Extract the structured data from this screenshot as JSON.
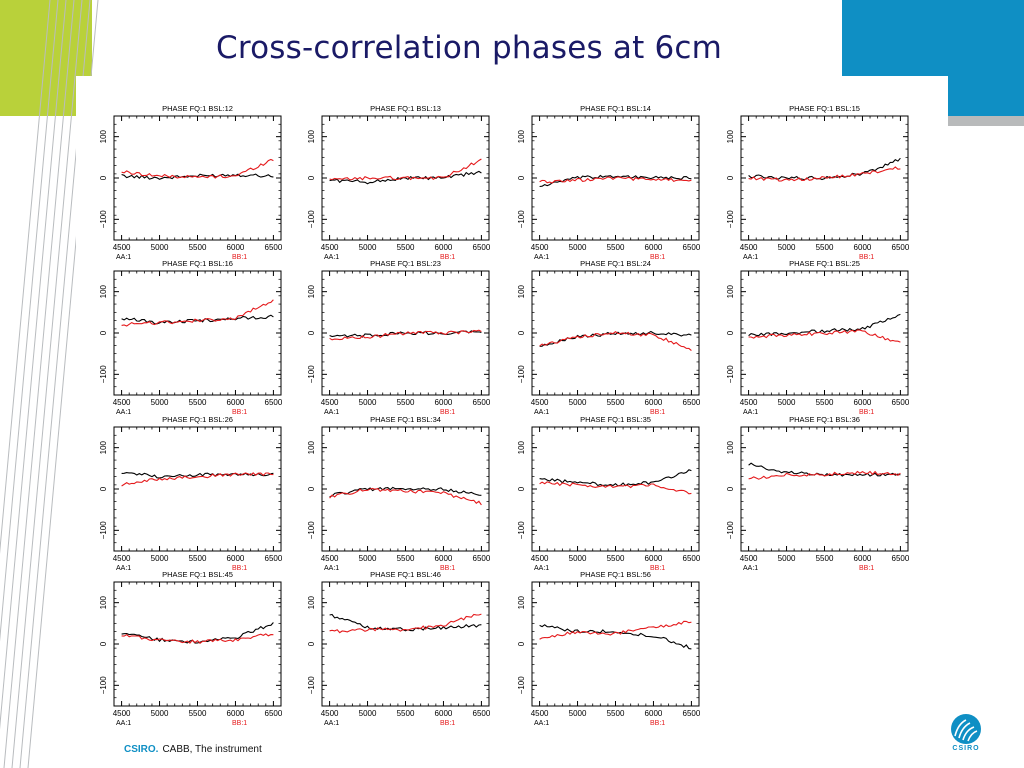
{
  "slide": {
    "title": "Cross-correlation phases at 6cm",
    "footer_brand": "CSIRO.",
    "footer_text": "CABB, The instrument",
    "logo_text": "CSIRO"
  },
  "colors": {
    "band": "#0f8fc4",
    "lime": "#b9d13a",
    "series_aa": "#000000",
    "series_bb": "#e41a1c"
  },
  "chart_data": [
    {
      "type": "line",
      "title": "PHASE FQ:1 BSL:12",
      "x": [
        4500,
        5000,
        5500,
        6000,
        6500
      ],
      "ylim": [
        -150,
        150
      ],
      "xlim": [
        4400,
        6600
      ],
      "xticks": [
        "4500",
        "5000",
        "5500",
        "6000",
        "6500"
      ],
      "yticks": [
        "100",
        "0",
        "−100"
      ],
      "legend": [
        "AA:1",
        "BB:1"
      ],
      "series": [
        {
          "name": "AA:1",
          "values": [
            5,
            0,
            5,
            8,
            5
          ]
        },
        {
          "name": "BB:1",
          "values": [
            15,
            5,
            2,
            5,
            45
          ]
        }
      ]
    },
    {
      "type": "line",
      "title": "PHASE FQ:1 BSL:13",
      "x": [
        4500,
        5000,
        5500,
        6000,
        6500
      ],
      "ylim": [
        -150,
        150
      ],
      "xlim": [
        4400,
        6600
      ],
      "xticks": [
        "4500",
        "5000",
        "5500",
        "6000",
        "6500"
      ],
      "yticks": [
        "100",
        "0",
        "−100"
      ],
      "legend": [
        "AA:1",
        "BB:1"
      ],
      "series": [
        {
          "name": "AA:1",
          "values": [
            -5,
            -10,
            0,
            0,
            15
          ]
        },
        {
          "name": "BB:1",
          "values": [
            -5,
            0,
            0,
            0,
            45
          ]
        }
      ]
    },
    {
      "type": "line",
      "title": "PHASE FQ:1 BSL:14",
      "x": [
        4500,
        5000,
        5500,
        6000,
        6500
      ],
      "ylim": [
        -150,
        150
      ],
      "xlim": [
        4400,
        6600
      ],
      "xticks": [
        "4500",
        "5000",
        "5500",
        "6000",
        "6500"
      ],
      "yticks": [
        "100",
        "0",
        "−100"
      ],
      "legend": [
        "AA:1",
        "BB:1"
      ],
      "series": [
        {
          "name": "AA:1",
          "values": [
            -20,
            0,
            5,
            0,
            0
          ]
        },
        {
          "name": "BB:1",
          "values": [
            -10,
            -5,
            0,
            -5,
            -5
          ]
        }
      ]
    },
    {
      "type": "line",
      "title": "PHASE FQ:1 BSL:15",
      "x": [
        4500,
        5000,
        5500,
        6000,
        6500
      ],
      "ylim": [
        -150,
        150
      ],
      "xlim": [
        4400,
        6600
      ],
      "xticks": [
        "4500",
        "5000",
        "5500",
        "6000",
        "6500"
      ],
      "yticks": [
        "100",
        "0",
        "−100"
      ],
      "legend": [
        "AA:1",
        "BB:1"
      ],
      "series": [
        {
          "name": "AA:1",
          "values": [
            5,
            0,
            0,
            10,
            45
          ]
        },
        {
          "name": "BB:1",
          "values": [
            0,
            -5,
            0,
            10,
            25
          ]
        }
      ]
    },
    {
      "type": "line",
      "title": "PHASE FQ:1 BSL:16",
      "x": [
        4500,
        5000,
        5500,
        6000,
        6500
      ],
      "ylim": [
        -150,
        150
      ],
      "xlim": [
        4400,
        6600
      ],
      "xticks": [
        "4500",
        "5000",
        "5500",
        "6000",
        "6500"
      ],
      "yticks": [
        "100",
        "0",
        "−100"
      ],
      "legend": [
        "AA:1",
        "BB:1"
      ],
      "series": [
        {
          "name": "AA:1",
          "values": [
            35,
            25,
            30,
            35,
            40
          ]
        },
        {
          "name": "BB:1",
          "values": [
            20,
            25,
            30,
            35,
            80
          ]
        }
      ]
    },
    {
      "type": "line",
      "title": "PHASE FQ:1 BSL:23",
      "x": [
        4500,
        5000,
        5500,
        6000,
        6500
      ],
      "ylim": [
        -150,
        150
      ],
      "xlim": [
        4400,
        6600
      ],
      "xticks": [
        "4500",
        "5000",
        "5500",
        "6000",
        "6500"
      ],
      "yticks": [
        "100",
        "0",
        "−100"
      ],
      "legend": [
        "AA:1",
        "BB:1"
      ],
      "series": [
        {
          "name": "AA:1",
          "values": [
            -10,
            -5,
            0,
            0,
            5
          ]
        },
        {
          "name": "BB:1",
          "values": [
            -15,
            -10,
            0,
            0,
            5
          ]
        }
      ]
    },
    {
      "type": "line",
      "title": "PHASE FQ:1 BSL:24",
      "x": [
        4500,
        5000,
        5500,
        6000,
        6500
      ],
      "ylim": [
        -150,
        150
      ],
      "xlim": [
        4400,
        6600
      ],
      "xticks": [
        "4500",
        "5000",
        "5500",
        "6000",
        "6500"
      ],
      "yticks": [
        "100",
        "0",
        "−100"
      ],
      "legend": [
        "AA:1",
        "BB:1"
      ],
      "series": [
        {
          "name": "AA:1",
          "values": [
            -30,
            -10,
            0,
            0,
            -5
          ]
        },
        {
          "name": "BB:1",
          "values": [
            -30,
            -10,
            0,
            -5,
            -40
          ]
        }
      ]
    },
    {
      "type": "line",
      "title": "PHASE FQ:1 BSL:25",
      "x": [
        4500,
        5000,
        5500,
        6000,
        6500
      ],
      "ylim": [
        -150,
        150
      ],
      "xlim": [
        4400,
        6600
      ],
      "xticks": [
        "4500",
        "5000",
        "5500",
        "6000",
        "6500"
      ],
      "yticks": [
        "100",
        "0",
        "−100"
      ],
      "legend": [
        "AA:1",
        "BB:1"
      ],
      "series": [
        {
          "name": "AA:1",
          "values": [
            -5,
            0,
            5,
            10,
            45
          ]
        },
        {
          "name": "BB:1",
          "values": [
            -10,
            -5,
            0,
            5,
            -25
          ]
        }
      ]
    },
    {
      "type": "line",
      "title": "PHASE FQ:1 BSL:26",
      "x": [
        4500,
        5000,
        5500,
        6000,
        6500
      ],
      "ylim": [
        -150,
        150
      ],
      "xlim": [
        4400,
        6600
      ],
      "xticks": [
        "4500",
        "5000",
        "5500",
        "6000",
        "6500"
      ],
      "yticks": [
        "100",
        "0",
        "−100"
      ],
      "legend": [
        "AA:1",
        "BB:1"
      ],
      "series": [
        {
          "name": "AA:1",
          "values": [
            40,
            30,
            35,
            35,
            35
          ]
        },
        {
          "name": "BB:1",
          "values": [
            10,
            25,
            30,
            35,
            35
          ]
        }
      ]
    },
    {
      "type": "line",
      "title": "PHASE FQ:1 BSL:34",
      "x": [
        4500,
        5000,
        5500,
        6000,
        6500
      ],
      "ylim": [
        -150,
        150
      ],
      "xlim": [
        4400,
        6600
      ],
      "xticks": [
        "4500",
        "5000",
        "5500",
        "6000",
        "6500"
      ],
      "yticks": [
        "100",
        "0",
        "−100"
      ],
      "legend": [
        "AA:1",
        "BB:1"
      ],
      "series": [
        {
          "name": "AA:1",
          "values": [
            -15,
            0,
            0,
            0,
            -15
          ]
        },
        {
          "name": "BB:1",
          "values": [
            -20,
            0,
            -5,
            -10,
            -35
          ]
        }
      ]
    },
    {
      "type": "line",
      "title": "PHASE FQ:1 BSL:35",
      "x": [
        4500,
        5000,
        5500,
        6000,
        6500
      ],
      "ylim": [
        -150,
        150
      ],
      "xlim": [
        4400,
        6600
      ],
      "xticks": [
        "4500",
        "5000",
        "5500",
        "6000",
        "6500"
      ],
      "yticks": [
        "100",
        "0",
        "−100"
      ],
      "legend": [
        "AA:1",
        "BB:1"
      ],
      "series": [
        {
          "name": "AA:1",
          "values": [
            25,
            15,
            10,
            15,
            45
          ]
        },
        {
          "name": "BB:1",
          "values": [
            15,
            10,
            5,
            10,
            -10
          ]
        }
      ]
    },
    {
      "type": "line",
      "title": "PHASE FQ:1 BSL:36",
      "x": [
        4500,
        5000,
        5500,
        6000,
        6500
      ],
      "ylim": [
        -150,
        150
      ],
      "xlim": [
        4400,
        6600
      ],
      "xticks": [
        "4500",
        "5000",
        "5500",
        "6000",
        "6500"
      ],
      "yticks": [
        "100",
        "0",
        "−100"
      ],
      "legend": [
        "AA:1",
        "BB:1"
      ],
      "series": [
        {
          "name": "AA:1",
          "values": [
            60,
            40,
            35,
            35,
            35
          ]
        },
        {
          "name": "BB:1",
          "values": [
            25,
            35,
            35,
            40,
            35
          ]
        }
      ]
    },
    {
      "type": "line",
      "title": "PHASE FQ:1 BSL:45",
      "x": [
        4500,
        5000,
        5500,
        6000,
        6500
      ],
      "ylim": [
        -150,
        150
      ],
      "xlim": [
        4400,
        6600
      ],
      "xticks": [
        "4500",
        "5000",
        "5500",
        "6000",
        "6500"
      ],
      "yticks": [
        "100",
        "0",
        "−100"
      ],
      "legend": [
        "AA:1",
        "BB:1"
      ],
      "series": [
        {
          "name": "AA:1",
          "values": [
            25,
            10,
            5,
            15,
            50
          ]
        },
        {
          "name": "BB:1",
          "values": [
            20,
            10,
            5,
            10,
            25
          ]
        }
      ]
    },
    {
      "type": "line",
      "title": "PHASE FQ:1 BSL:46",
      "x": [
        4500,
        5000,
        5500,
        6000,
        6500
      ],
      "ylim": [
        -150,
        150
      ],
      "xlim": [
        4400,
        6600
      ],
      "xticks": [
        "4500",
        "5000",
        "5500",
        "6000",
        "6500"
      ],
      "yticks": [
        "100",
        "0",
        "−100"
      ],
      "legend": [
        "AA:1",
        "BB:1"
      ],
      "series": [
        {
          "name": "AA:1",
          "values": [
            70,
            40,
            35,
            40,
            45
          ]
        },
        {
          "name": "BB:1",
          "values": [
            30,
            35,
            35,
            45,
            75
          ]
        }
      ]
    },
    {
      "type": "line",
      "title": "PHASE FQ:1 BSL:56",
      "x": [
        4500,
        5000,
        5500,
        6000,
        6500
      ],
      "ylim": [
        -150,
        150
      ],
      "xlim": [
        4400,
        6600
      ],
      "xticks": [
        "4500",
        "5000",
        "5500",
        "6000",
        "6500"
      ],
      "yticks": [
        "100",
        "0",
        "−100"
      ],
      "legend": [
        "AA:1",
        "BB:1"
      ],
      "series": [
        {
          "name": "AA:1",
          "values": [
            45,
            30,
            30,
            20,
            -10
          ]
        },
        {
          "name": "BB:1",
          "values": [
            15,
            30,
            25,
            40,
            55
          ]
        }
      ]
    }
  ]
}
